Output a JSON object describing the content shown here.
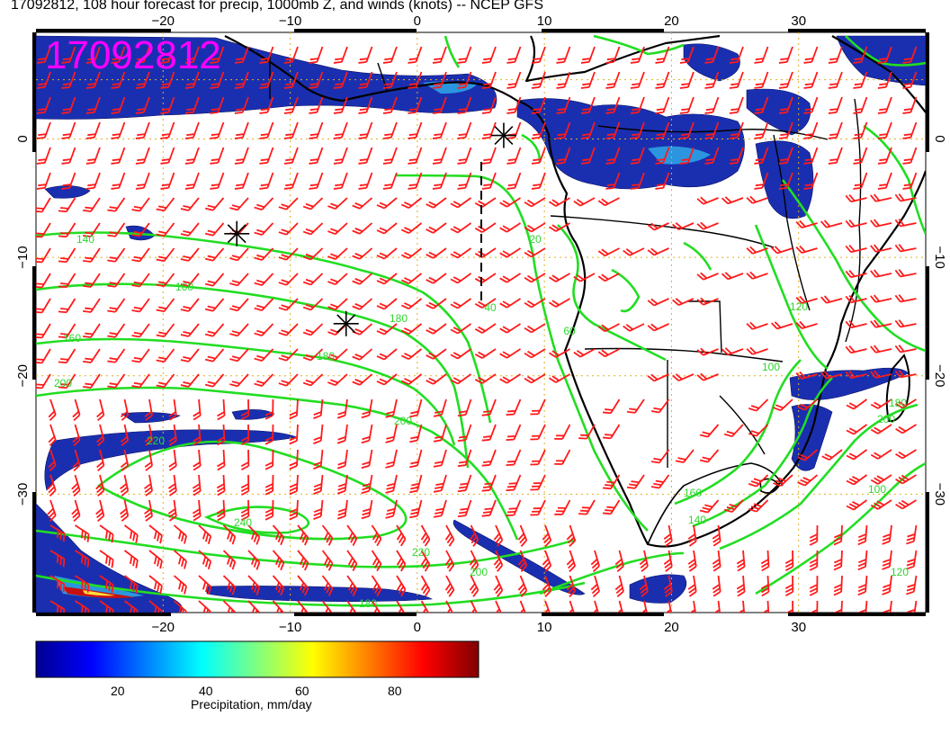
{
  "title": "17092812, 108 hour forecast for precip, 1000mb Z, and winds (knots) -- NCEP GFS",
  "stamp": "17092812",
  "colors": {
    "contour": "#22dd22",
    "barb": "#ff1a1a",
    "coast": "#000000",
    "grid": "#e0b020",
    "stamp": "#ff00ff"
  },
  "axes": {
    "lon_range": [
      -30,
      40
    ],
    "lat_range": [
      -40,
      9
    ],
    "lon_ticks": [
      "−20",
      "−10",
      "0",
      "10",
      "20",
      "30"
    ],
    "lat_ticks": [
      "0",
      "−10",
      "−20",
      "−30"
    ],
    "grid": true
  },
  "contour_labels": [
    "140",
    "160",
    "160",
    "180",
    "180",
    "200",
    "200",
    "220",
    "240",
    "220",
    "200",
    "180",
    "100",
    "120",
    "140",
    "160",
    "180",
    "200",
    "100",
    "120",
    "40",
    "20",
    "60"
  ],
  "markers": [
    {
      "lon": 6.8,
      "lat": 0.3,
      "symbol": "asterisk"
    },
    {
      "lon": -14.2,
      "lat": -8.0,
      "symbol": "asterisk"
    },
    {
      "lon": -5.6,
      "lat": -15.6,
      "symbol": "asterisk"
    }
  ],
  "colorbar": {
    "label": "Precipitation, mm/day",
    "ticks": [
      "20",
      "40",
      "60",
      "80"
    ],
    "min": 0,
    "max": 100,
    "colors": [
      "#00008f",
      "#0000ff",
      "#0080ff",
      "#00ffff",
      "#80ff80",
      "#ffff00",
      "#ff8000",
      "#ff0000",
      "#800000"
    ]
  }
}
